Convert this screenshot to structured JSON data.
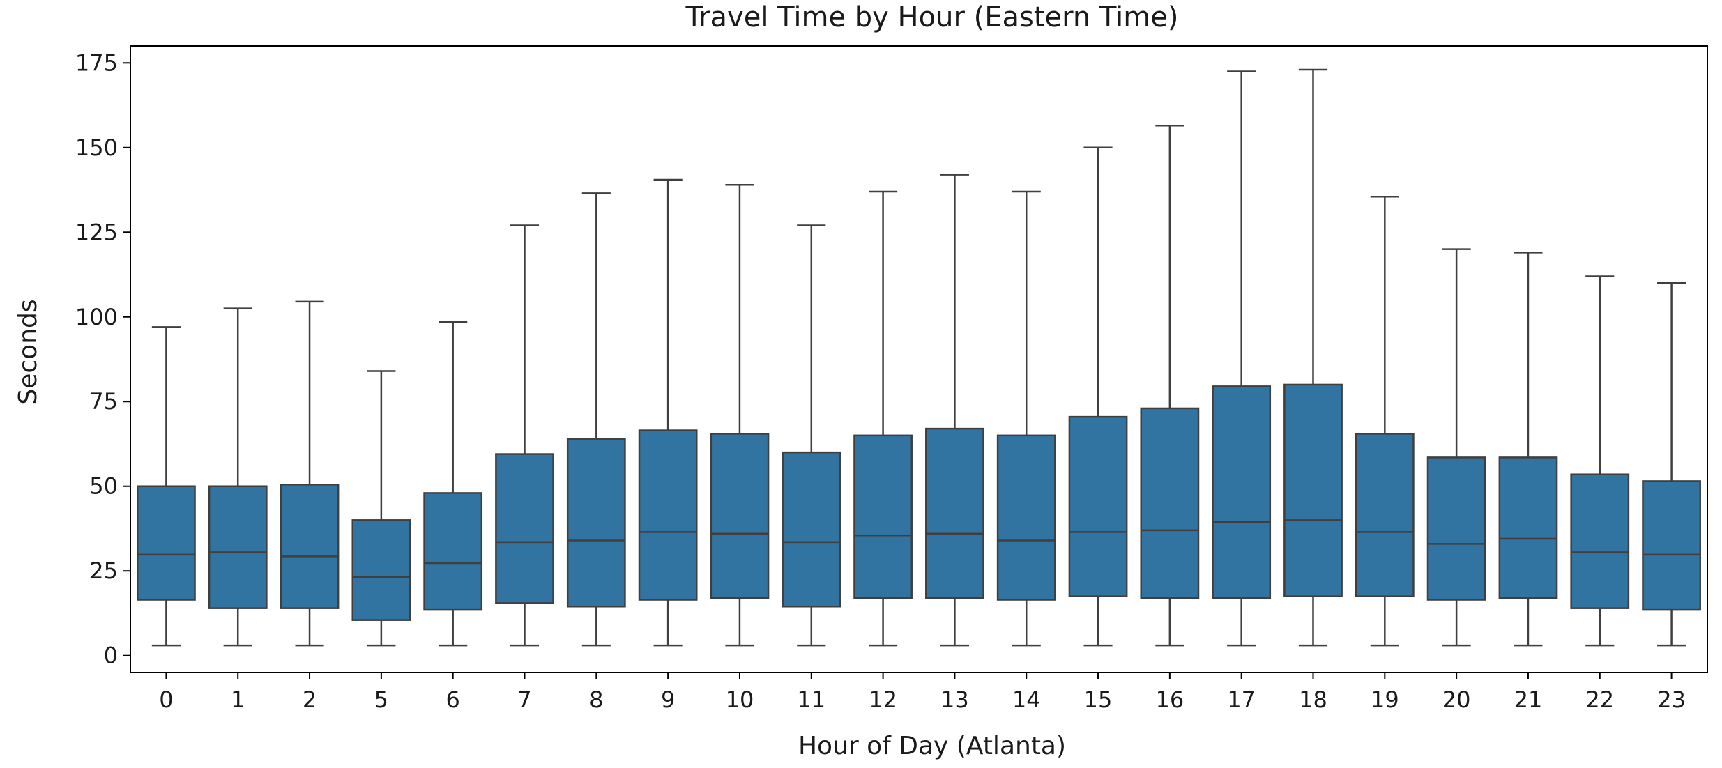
{
  "chart_data": {
    "type": "box",
    "title": "Travel Time by Hour (Eastern Time)",
    "xlabel": "Hour of Day (Atlanta)",
    "ylabel": "Seconds",
    "ylim": [
      -5,
      180
    ],
    "yticks": [
      0,
      25,
      50,
      75,
      100,
      125,
      150,
      175
    ],
    "box_color": "#3274a1",
    "line_color": "#3f3f3f",
    "categories": [
      "0",
      "1",
      "2",
      "5",
      "6",
      "7",
      "8",
      "9",
      "10",
      "11",
      "12",
      "13",
      "14",
      "15",
      "16",
      "17",
      "18",
      "19",
      "20",
      "21",
      "22",
      "23"
    ],
    "boxes": [
      {
        "hour": "0",
        "min": 3,
        "q1": 16.5,
        "median": 29.8,
        "q3": 50,
        "max": 97
      },
      {
        "hour": "1",
        "min": 3,
        "q1": 14,
        "median": 30.5,
        "q3": 50,
        "max": 102.5
      },
      {
        "hour": "2",
        "min": 3,
        "q1": 14,
        "median": 29.3,
        "q3": 50.5,
        "max": 104.5
      },
      {
        "hour": "5",
        "min": 3,
        "q1": 10.5,
        "median": 23.2,
        "q3": 40,
        "max": 84
      },
      {
        "hour": "6",
        "min": 3,
        "q1": 13.5,
        "median": 27.3,
        "q3": 48,
        "max": 98.5
      },
      {
        "hour": "7",
        "min": 3,
        "q1": 15.5,
        "median": 33.5,
        "q3": 59.5,
        "max": 127
      },
      {
        "hour": "8",
        "min": 3,
        "q1": 14.5,
        "median": 34,
        "q3": 64,
        "max": 136.5
      },
      {
        "hour": "9",
        "min": 3,
        "q1": 16.5,
        "median": 36.5,
        "q3": 66.5,
        "max": 140.5
      },
      {
        "hour": "10",
        "min": 3,
        "q1": 17,
        "median": 36,
        "q3": 65.5,
        "max": 139
      },
      {
        "hour": "11",
        "min": 3,
        "q1": 14.5,
        "median": 33.5,
        "q3": 60,
        "max": 127
      },
      {
        "hour": "12",
        "min": 3,
        "q1": 17,
        "median": 35.5,
        "q3": 65,
        "max": 137
      },
      {
        "hour": "13",
        "min": 3,
        "q1": 17,
        "median": 36,
        "q3": 67,
        "max": 142
      },
      {
        "hour": "14",
        "min": 3,
        "q1": 16.5,
        "median": 34,
        "q3": 65,
        "max": 137
      },
      {
        "hour": "15",
        "min": 3,
        "q1": 17.5,
        "median": 36.5,
        "q3": 70.5,
        "max": 150
      },
      {
        "hour": "16",
        "min": 3,
        "q1": 17,
        "median": 37,
        "q3": 73,
        "max": 156.5
      },
      {
        "hour": "17",
        "min": 3,
        "q1": 17,
        "median": 39.5,
        "q3": 79.5,
        "max": 172.5
      },
      {
        "hour": "18",
        "min": 3,
        "q1": 17.5,
        "median": 40,
        "q3": 80,
        "max": 173
      },
      {
        "hour": "19",
        "min": 3,
        "q1": 17.5,
        "median": 36.5,
        "q3": 65.5,
        "max": 135.5
      },
      {
        "hour": "20",
        "min": 3,
        "q1": 16.5,
        "median": 33,
        "q3": 58.5,
        "max": 120
      },
      {
        "hour": "21",
        "min": 3,
        "q1": 17,
        "median": 34.5,
        "q3": 58.5,
        "max": 119
      },
      {
        "hour": "22",
        "min": 3,
        "q1": 14,
        "median": 30.5,
        "q3": 53.5,
        "max": 112
      },
      {
        "hour": "23",
        "min": 3,
        "q1": 13.5,
        "median": 29.8,
        "q3": 51.5,
        "max": 110
      }
    ]
  }
}
